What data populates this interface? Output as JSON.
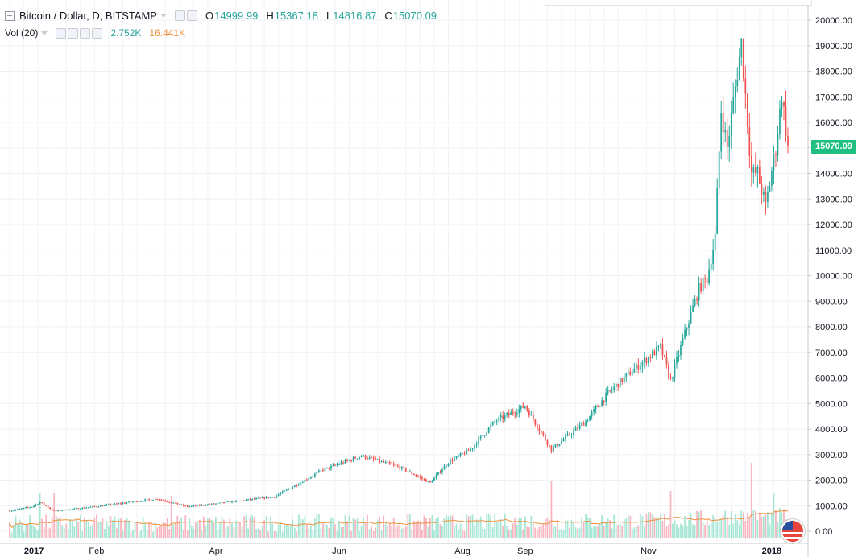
{
  "legend": {
    "symbol": "Bitcoin / Dollar, D, BITSTAMP",
    "open_label": "O",
    "open": "14999.99",
    "high_label": "H",
    "high": "15367.18",
    "low_label": "L",
    "low": "14816.87",
    "close_label": "C",
    "close": "15070.09"
  },
  "volume_legend": {
    "name": "Vol (20)",
    "volume": "2.752K",
    "ma": "16.441K"
  },
  "last_price": "15070.09",
  "colors": {
    "up": "#26a69a",
    "down": "#ef5350",
    "up_vol": "#a6e6d4",
    "down_vol": "#f7b6bf",
    "ma": "#f0913a",
    "price_line": "#26a69a"
  },
  "chart_data": {
    "type": "candlestick",
    "timeframe": "D",
    "y_axis": {
      "min": 0,
      "max": 20000,
      "step": 1000,
      "ticks": [
        "0.00",
        "1000.00",
        "2000.00",
        "3000.00",
        "4000.00",
        "5000.00",
        "6000.00",
        "7000.00",
        "8000.00",
        "9000.00",
        "10000.00",
        "11000.00",
        "12000.00",
        "13000.00",
        "14000.00",
        "15000.00",
        "16000.00",
        "17000.00",
        "18000.00",
        "19000.00",
        "20000.00"
      ]
    },
    "x_axis": {
      "labels": [
        {
          "text": "2017",
          "date": "2017-01-01",
          "bold": true
        },
        {
          "text": "Feb",
          "date": "2017-02-01"
        },
        {
          "text": "Apr",
          "date": "2017-04-01"
        },
        {
          "text": "Jun",
          "date": "2017-06-01"
        },
        {
          "text": "Aug",
          "date": "2017-08-01"
        },
        {
          "text": "Sep",
          "date": "2017-09-01"
        },
        {
          "text": "Nov",
          "date": "2017-11-01"
        },
        {
          "text": "2018",
          "date": "2018-01-01",
          "bold": true
        }
      ]
    },
    "price_keyframes": [
      {
        "date": "2016-12-20",
        "close": 800
      },
      {
        "date": "2016-12-31",
        "close": 960
      },
      {
        "date": "2017-01-04",
        "close": 1130
      },
      {
        "date": "2017-01-11",
        "close": 790
      },
      {
        "date": "2017-02-01",
        "close": 970
      },
      {
        "date": "2017-03-03",
        "close": 1270
      },
      {
        "date": "2017-03-18",
        "close": 960
      },
      {
        "date": "2017-04-01",
        "close": 1080
      },
      {
        "date": "2017-04-30",
        "close": 1350
      },
      {
        "date": "2017-05-24",
        "close": 2400
      },
      {
        "date": "2017-06-12",
        "close": 2950
      },
      {
        "date": "2017-07-01",
        "close": 2500
      },
      {
        "date": "2017-07-16",
        "close": 1900
      },
      {
        "date": "2017-07-25",
        "close": 2700
      },
      {
        "date": "2017-08-05",
        "close": 3200
      },
      {
        "date": "2017-08-17",
        "close": 4300
      },
      {
        "date": "2017-09-01",
        "close": 4900
      },
      {
        "date": "2017-09-14",
        "close": 3200
      },
      {
        "date": "2017-10-01",
        "close": 4300
      },
      {
        "date": "2017-10-12",
        "close": 5400
      },
      {
        "date": "2017-10-20",
        "close": 6000
      },
      {
        "date": "2017-11-07",
        "close": 7200
      },
      {
        "date": "2017-11-12",
        "close": 5900
      },
      {
        "date": "2017-11-20",
        "close": 8000
      },
      {
        "date": "2017-11-26",
        "close": 9500
      },
      {
        "date": "2017-11-30",
        "close": 9900
      },
      {
        "date": "2017-12-04",
        "close": 11500
      },
      {
        "date": "2017-12-07",
        "close": 16500
      },
      {
        "date": "2017-12-10",
        "close": 15000
      },
      {
        "date": "2017-12-13",
        "close": 16800
      },
      {
        "date": "2017-12-17",
        "close": 19100
      },
      {
        "date": "2017-12-22",
        "close": 14000
      },
      {
        "date": "2017-12-25",
        "close": 14000
      },
      {
        "date": "2017-12-29",
        "close": 12700
      },
      {
        "date": "2018-01-03",
        "close": 15000
      },
      {
        "date": "2018-01-06",
        "close": 17100
      },
      {
        "date": "2018-01-09",
        "close": 15070
      }
    ],
    "volume_spikes": [
      {
        "date": "2017-01-04",
        "value": 2750
      },
      {
        "date": "2017-01-11",
        "value": 2800
      },
      {
        "date": "2017-03-10",
        "value": 2600
      },
      {
        "date": "2017-09-14",
        "value": 3500
      },
      {
        "date": "2017-11-12",
        "value": 2900
      },
      {
        "date": "2017-12-22",
        "value": 4650
      },
      {
        "date": "2018-01-02",
        "value": 2800
      }
    ],
    "volume_scale_max": 6500,
    "ma_period": 20
  }
}
